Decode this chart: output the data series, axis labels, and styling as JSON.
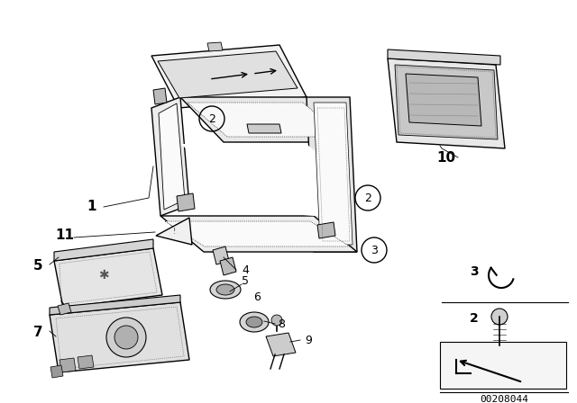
{
  "background_color": "#ffffff",
  "fig_width": 6.4,
  "fig_height": 4.48,
  "dpi": 100,
  "diagram_id": "00208044",
  "line_color": "#000000",
  "text_color": "#000000"
}
